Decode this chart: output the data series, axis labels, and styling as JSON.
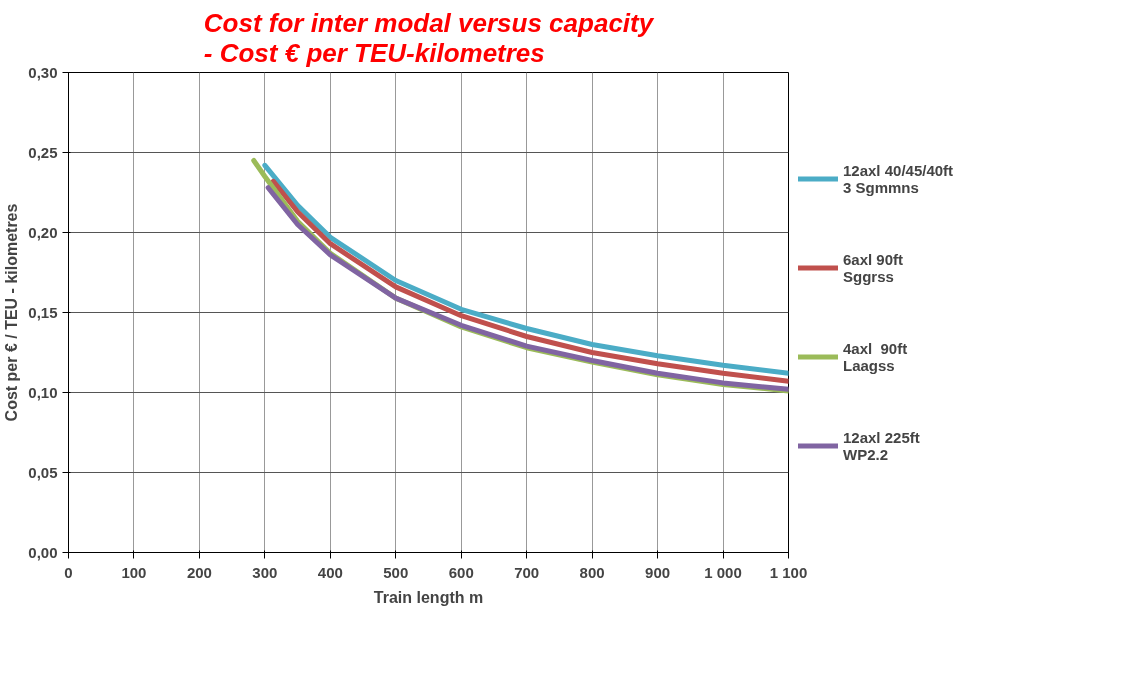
{
  "chart_data": {
    "type": "line",
    "title": "Cost for inter modal versus capacity\n- Cost € per TEU-kilometres",
    "xlabel": "Train length m",
    "ylabel": "Cost per € / TEU - kilometres",
    "xlim": [
      0,
      1100
    ],
    "xticks": [
      0,
      100,
      200,
      300,
      400,
      500,
      600,
      700,
      800,
      900,
      {
        "value": 1000,
        "label": "1 000"
      },
      {
        "value": 1100,
        "label": "1 100"
      }
    ],
    "ylim": [
      0,
      0.3
    ],
    "yticks": [
      {
        "value": 0,
        "label": "0,00"
      },
      {
        "value": 0.05,
        "label": "0,05"
      },
      {
        "value": 0.1,
        "label": "0,10"
      },
      {
        "value": 0.15,
        "label": "0,15"
      },
      {
        "value": 0.2,
        "label": "0,20"
      },
      {
        "value": 0.25,
        "label": "0,25"
      },
      {
        "value": 0.3,
        "label": "0,30"
      }
    ],
    "grid": true,
    "legend": "right",
    "marker": "none",
    "line_style": "solid",
    "series": [
      {
        "name": "12axl 40/45/40ft\n3 Sgmmns",
        "color": "#4bacc6",
        "x": [
          300,
          350,
          400,
          500,
          600,
          700,
          800,
          900,
          1000,
          1100
        ],
        "values": [
          0.242,
          0.217,
          0.197,
          0.17,
          0.152,
          0.14,
          0.13,
          0.123,
          0.117,
          0.112
        ]
      },
      {
        "name": "6axl 90ft\nSggrss",
        "color": "#c0504d",
        "x": [
          313,
          350,
          400,
          500,
          600,
          700,
          800,
          900,
          1000,
          1100
        ],
        "values": [
          0.232,
          0.213,
          0.193,
          0.166,
          0.148,
          0.135,
          0.125,
          0.118,
          0.112,
          0.107
        ]
      },
      {
        "name": "4axl  90ft\nLaagss",
        "color": "#9bbb59",
        "x": [
          283,
          300,
          350,
          400,
          500,
          600,
          700,
          800,
          900,
          1000,
          1100
        ],
        "values": [
          0.245,
          0.235,
          0.207,
          0.187,
          0.159,
          0.141,
          0.128,
          0.119,
          0.111,
          0.105,
          0.101
        ]
      },
      {
        "name": "12axl 225ft\nWP2.2",
        "color": "#8064a2",
        "x": [
          305,
          350,
          400,
          500,
          600,
          700,
          800,
          900,
          1000,
          1100
        ],
        "values": [
          0.228,
          0.205,
          0.186,
          0.159,
          0.142,
          0.129,
          0.12,
          0.112,
          0.106,
          0.102
        ]
      }
    ]
  }
}
